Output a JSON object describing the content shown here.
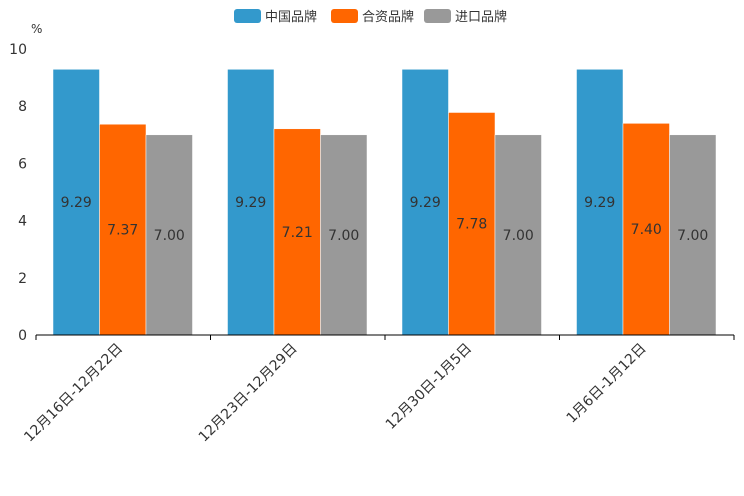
{
  "chart_data": {
    "type": "bar",
    "title": "",
    "unit": "%",
    "xlabel": "",
    "ylabel": "%",
    "ylim": [
      0,
      10
    ],
    "yticks": [
      0,
      2,
      4,
      6,
      8,
      10
    ],
    "grid": false,
    "legend_position": "top-center",
    "categories": [
      "12月16日-12月22日",
      "12月23日-12月29日",
      "12月30日-1月5日",
      "1月6日-1月12日"
    ],
    "series": [
      {
        "name": "中国品牌",
        "color": "#3399cc",
        "values": [
          9.29,
          9.29,
          9.29,
          9.29
        ],
        "labels": [
          "9.29",
          "9.29",
          "9.29",
          "9.29"
        ]
      },
      {
        "name": "合资品牌",
        "color": "#ff6600",
        "values": [
          7.37,
          7.21,
          7.78,
          7.4
        ],
        "labels": [
          "7.37",
          "7.21",
          "7.78",
          "7.40"
        ]
      },
      {
        "name": "进口品牌",
        "color": "#999999",
        "values": [
          7.0,
          7.0,
          7.0,
          7.0
        ],
        "labels": [
          "7.00",
          "7.00",
          "7.00",
          "7.00"
        ]
      }
    ]
  }
}
